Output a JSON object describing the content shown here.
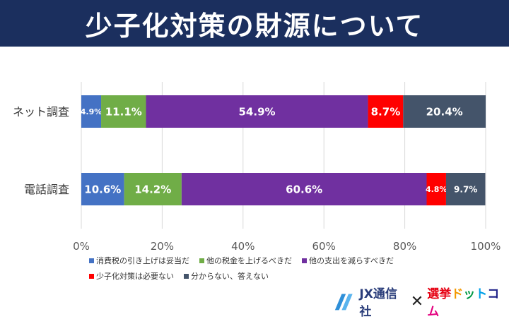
{
  "header": {
    "title": "少子化対策の財源について"
  },
  "chart_data": {
    "type": "bar",
    "orientation": "horizontal",
    "stacked": true,
    "percent_stacked": true,
    "categories": [
      "ネット調査",
      "電話調査"
    ],
    "series": [
      {
        "name": "消費税の引き上げは妥当だ",
        "color": "#4472c4",
        "values": [
          4.9,
          10.6
        ],
        "labels": [
          "4.9%",
          "10.6%"
        ]
      },
      {
        "name": "他の税金を上げるべきだ",
        "color": "#70ad47",
        "values": [
          11.1,
          14.2
        ],
        "labels": [
          "11.1%",
          "14.2%"
        ]
      },
      {
        "name": "他の支出を減らすべきだ",
        "color": "#7030a0",
        "values": [
          54.9,
          60.6
        ],
        "labels": [
          "54.9%",
          "60.6%"
        ]
      },
      {
        "name": "少子化対策は必要ない",
        "color": "#ff0000",
        "values": [
          8.7,
          4.8
        ],
        "labels": [
          "8.7%",
          "4.8%"
        ]
      },
      {
        "name": "分からない、答えない",
        "color": "#44546a",
        "values": [
          20.4,
          9.7
        ],
        "labels": [
          "20.4%",
          "9.7%"
        ]
      }
    ],
    "xlim": [
      0,
      100
    ],
    "x_ticks": [
      "0%",
      "20%",
      "40%",
      "60%",
      "80%",
      "100%"
    ],
    "grid": true,
    "legend_position": "bottom"
  },
  "logos": {
    "jx": "JX通信社",
    "cross": "✕",
    "senkyo": "選挙ドットコム",
    "icon": "jx-logo-icon"
  }
}
